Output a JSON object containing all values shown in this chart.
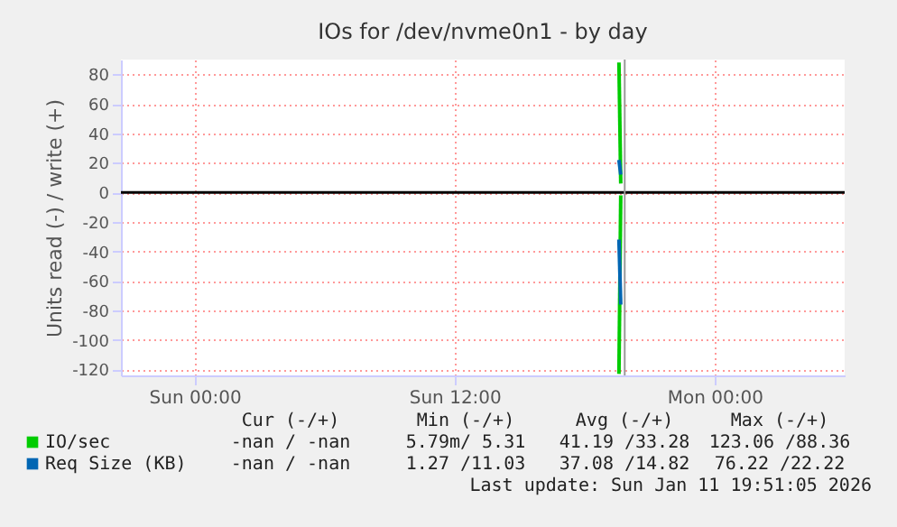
{
  "chart_data": {
    "type": "line",
    "title": "IOs for /dev/nvme0n1 - by day",
    "ylabel": "Units read (-) / write (+)",
    "series": [
      {
        "name": "IO/sec",
        "color": "#00cc00",
        "x": [
          "2026-01-11T19:35",
          "2026-01-11T19:40"
        ],
        "values": [
          88,
          6
        ]
      },
      {
        "color": "#00cc00",
        "x": [
          "2026-01-11T19:35",
          "2026-01-11T19:40"
        ],
        "values": [
          -123,
          -2
        ]
      },
      {
        "name": "Req Size (KB)",
        "color": "#0066b3",
        "x": [
          "2026-01-11T19:35",
          "2026-01-11T19:40"
        ],
        "values": [
          22,
          12
        ]
      },
      {
        "color": "#0066b3",
        "x": [
          "2026-01-11T19:35",
          "2026-01-11T19:40"
        ],
        "values": [
          -32,
          -76
        ]
      }
    ],
    "xlim": [
      "2026-01-10T20:36",
      "2026-01-12T06:00"
    ],
    "xticks": [
      {
        "value": "2026-01-11T00:00",
        "label": "Sun 00:00"
      },
      {
        "value": "2026-01-11T12:00",
        "label": "Sun 12:00"
      },
      {
        "value": "2026-01-12T00:00",
        "label": "Mon 00:00"
      }
    ],
    "ylim": [
      -124,
      90
    ],
    "yticks": [
      -120,
      -100,
      -80,
      -60,
      -40,
      -20,
      0,
      20,
      40,
      60,
      80
    ],
    "ref_lines": [
      {
        "axis": "y",
        "value": 0,
        "color": "#000000"
      },
      {
        "axis": "x",
        "value": "2026-01-11T19:51",
        "color": "#999999"
      }
    ],
    "grid": true,
    "legend": "bottom",
    "marker": "none",
    "line_style": "solid",
    "annotations": [
      "Cur (-/+)",
      "Min (-/+)",
      "Avg (-/+)",
      "Max (-/+)",
      "-nan / -nan",
      "5.79m/ 5.31",
      "41.19 /33.28",
      "123.06 /88.36",
      "-nan / -nan",
      "1.27 /11.03",
      "37.08 /14.82",
      "76.22 /22.22",
      "Last update: Sun Jan 11 19:51:05 2026"
    ]
  }
}
